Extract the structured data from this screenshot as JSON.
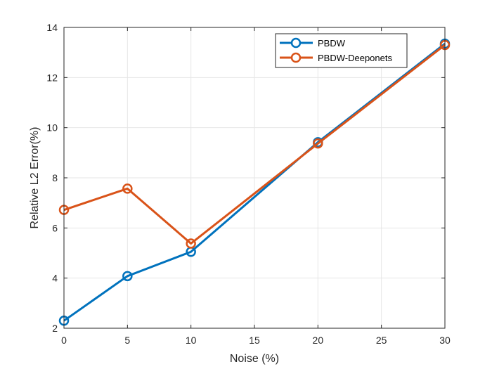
{
  "chart_data": {
    "type": "line",
    "xlabel": "Noise (%)",
    "ylabel": "Relative L2 Error(%)",
    "xlim": [
      0,
      30
    ],
    "ylim": [
      2,
      14
    ],
    "xticks": [
      0,
      5,
      10,
      15,
      20,
      25,
      30
    ],
    "yticks": [
      2,
      4,
      6,
      8,
      10,
      12,
      14
    ],
    "grid": true,
    "legend_position": "top-right",
    "x": [
      0,
      5,
      10,
      20,
      30
    ],
    "series": [
      {
        "name": "PBDW",
        "values": [
          2.3,
          4.08,
          5.05,
          9.42,
          13.35
        ],
        "color": "#0072BD",
        "marker": "circle"
      },
      {
        "name": "PBDW-Deeponets",
        "values": [
          6.72,
          7.57,
          5.38,
          9.37,
          13.3
        ],
        "color": "#D95319",
        "marker": "circle"
      }
    ]
  }
}
